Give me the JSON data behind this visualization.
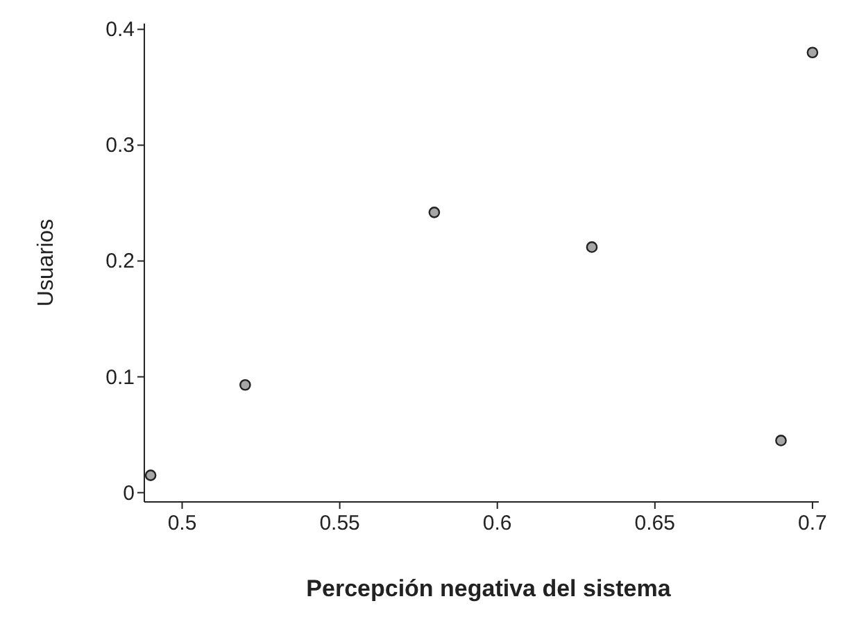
{
  "chart_data": {
    "type": "scatter",
    "xlabel": "Percepción negativa del sistema",
    "ylabel": "Usuarios",
    "x": [
      0.49,
      0.52,
      0.58,
      0.63,
      0.69,
      0.7
    ],
    "values": [
      0.015,
      0.093,
      0.242,
      0.212,
      0.045,
      0.38
    ],
    "color": "#a6a6a6",
    "marker": "circle",
    "grid": false,
    "xlim": [
      0.488,
      0.702
    ],
    "xticks": [
      0.5,
      0.55,
      0.6,
      0.65,
      0.7
    ],
    "ylim": [
      -0.008,
      0.405
    ],
    "yticks": [
      0,
      0.1,
      0.2,
      0.3,
      0.4
    ]
  }
}
